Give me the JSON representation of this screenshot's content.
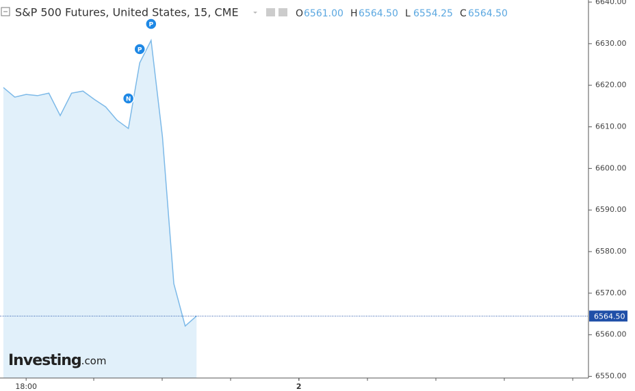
{
  "chart_data": {
    "type": "area",
    "title": "S&P 500 Futures, United States, 15, CME",
    "ohlc": [
      {
        "key": "O",
        "text": "6561.00"
      },
      {
        "key": "H",
        "text": "6564.50"
      },
      {
        "key": "L",
        "text": "6554.25"
      },
      {
        "key": "C",
        "text": "6564.50"
      }
    ],
    "x": [
      0,
      1,
      2,
      3,
      4,
      5,
      6,
      7,
      8,
      9,
      10,
      11,
      12,
      13,
      14,
      15,
      16,
      17
    ],
    "series": [
      {
        "name": "S&P 500 Futures",
        "color": "#7cb9e8",
        "values": [
          6619.45,
          6617.15,
          6617.8,
          6617.5,
          6618.1,
          6612.7,
          6618.1,
          6618.6,
          6616.6,
          6614.8,
          6611.6,
          6609.6,
          6625.4,
          6630.8,
          6607.6,
          6572.3,
          6562.1,
          6564.5
        ]
      }
    ],
    "area_color": "#e1f0fa",
    "xlim": [
      -0.3,
      51.5
    ],
    "xticks": [
      {
        "value": 2,
        "label": "18:00"
      },
      {
        "value": 26,
        "label": "2"
      }
    ],
    "ylim": [
      6549.6,
      6640.5
    ],
    "yticks": [
      {
        "value": 6550,
        "label": "6550.00"
      },
      {
        "value": 6560,
        "label": "6560.00"
      },
      {
        "value": 6570,
        "label": "6570.00"
      },
      {
        "value": 6580,
        "label": "6580.00"
      },
      {
        "value": 6590,
        "label": "6590.00"
      },
      {
        "value": 6600,
        "label": "6600.00"
      },
      {
        "value": 6610,
        "label": "6610.00"
      },
      {
        "value": 6620,
        "label": "6620.00"
      },
      {
        "value": 6630,
        "label": "6630.00"
      },
      {
        "value": 6640,
        "label": "6640.00"
      }
    ],
    "last_price": {
      "value": 6564.5,
      "label": "6564.50"
    },
    "annotations": [
      {
        "label": "N",
        "index": 11
      },
      {
        "label": "P",
        "index": 12
      },
      {
        "label": "P",
        "index": 13
      }
    ],
    "watermark": [
      "Investing",
      ".com"
    ]
  }
}
